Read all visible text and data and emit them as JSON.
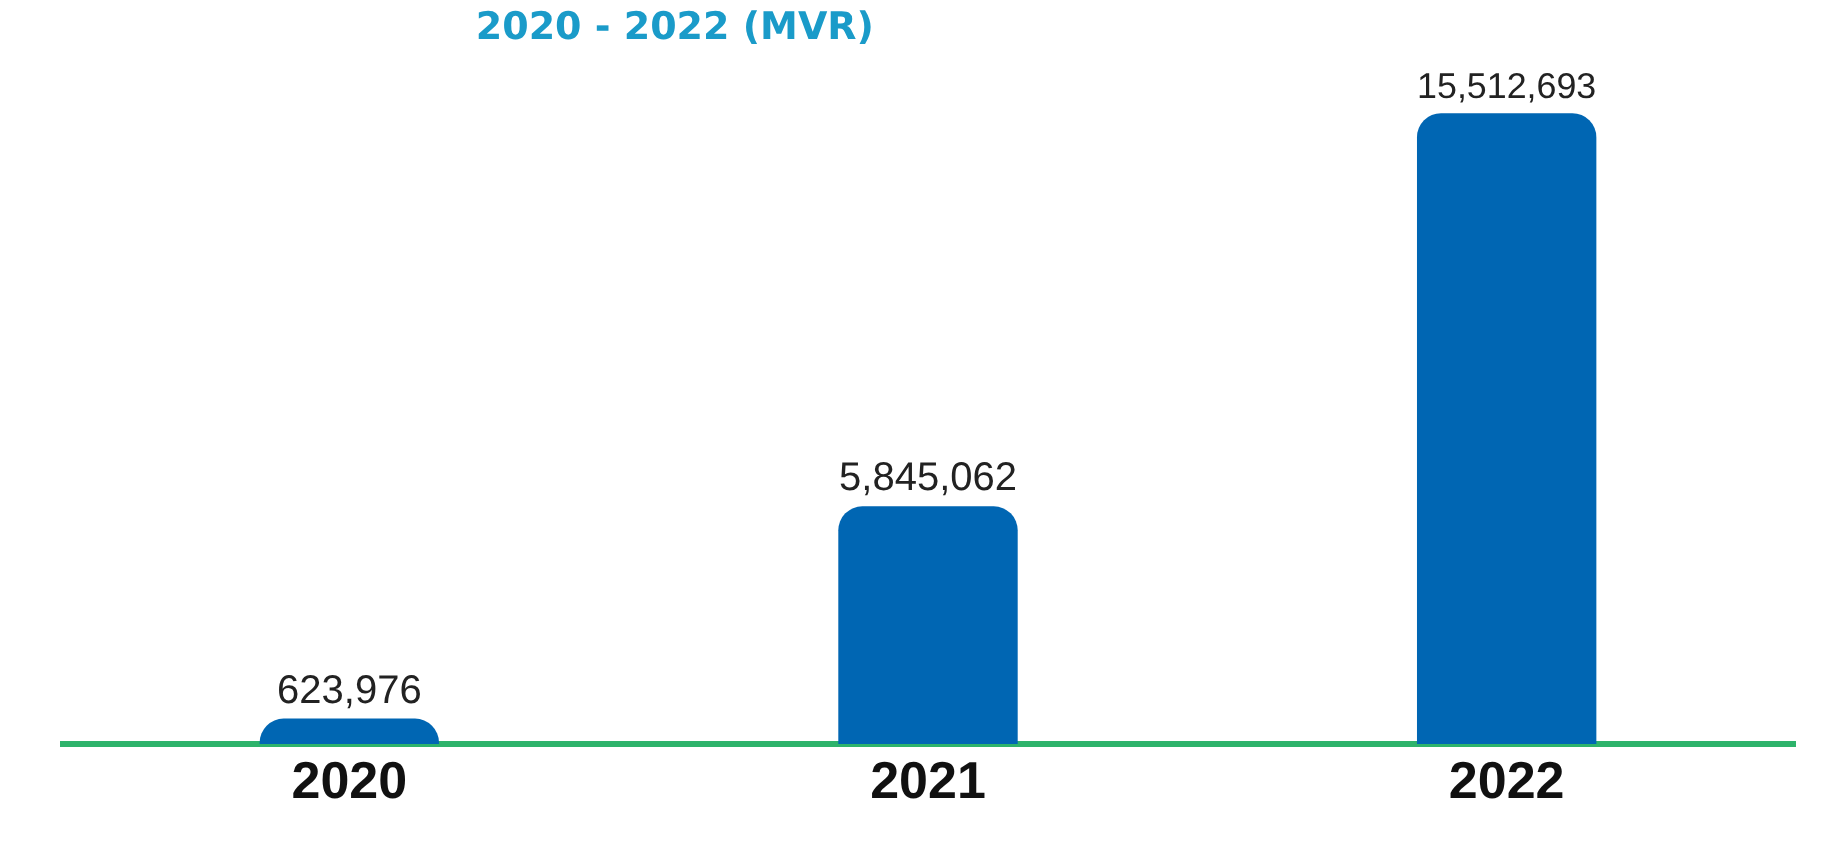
{
  "chart_data": {
    "type": "bar",
    "title": "2020 - 2022 (MVR)",
    "categories": [
      "2020",
      "2021",
      "2022"
    ],
    "values": [
      623976,
      5845062,
      15512693
    ],
    "value_labels": [
      "623,976",
      "5,845,062",
      "15,512,693"
    ],
    "color": "#0066b3",
    "tick_labels": "x"
  }
}
